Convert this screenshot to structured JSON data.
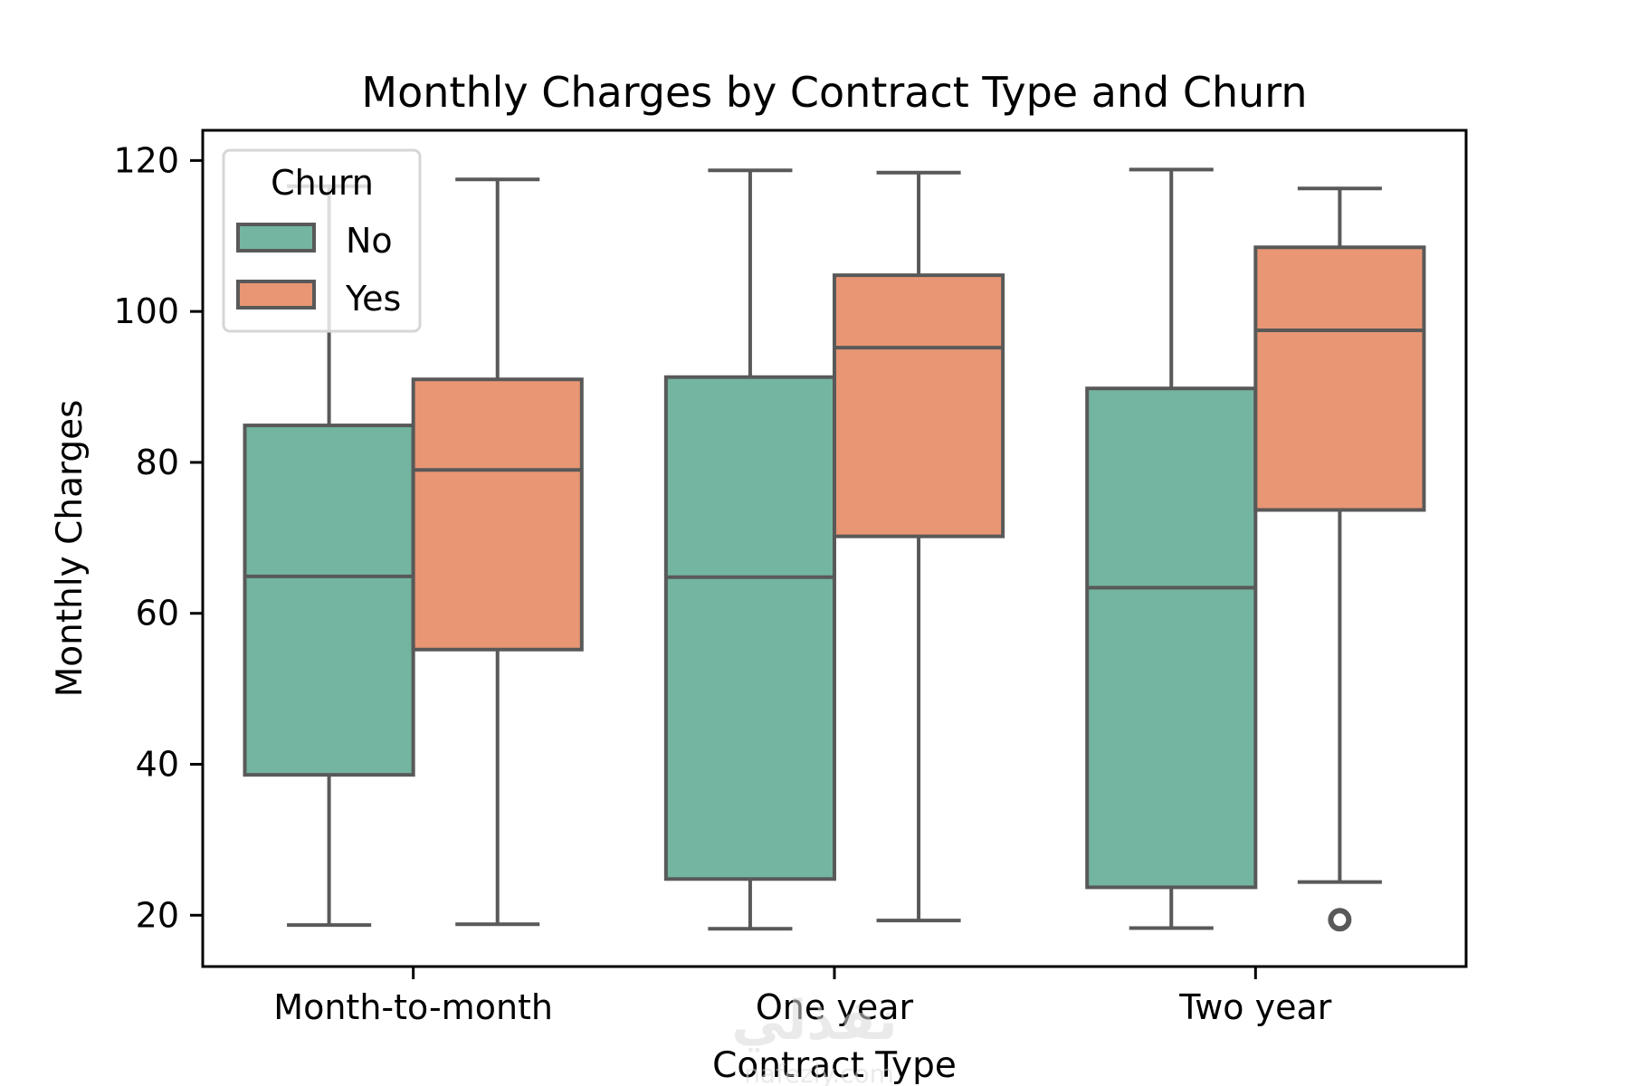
{
  "chart_data": {
    "type": "box",
    "title": "Monthly Charges by Contract Type and Churn",
    "xlabel": "Contract Type",
    "ylabel": "Monthly Charges",
    "categories": [
      "Month-to-month",
      "One year",
      "Two year"
    ],
    "ylim": [
      13.2,
      124
    ],
    "yticks": [
      20,
      40,
      60,
      80,
      100,
      120
    ],
    "grid": false,
    "legend": {
      "title": "Churn",
      "placement": "top-left",
      "entries": [
        "No",
        "Yes"
      ]
    },
    "series": [
      {
        "name": "No",
        "color": "#73b5a0",
        "boxes": [
          {
            "category": "Month-to-month",
            "whisker_low": 18.7,
            "q1": 38.6,
            "median": 64.9,
            "q3": 84.9,
            "whisker_high": 116.6,
            "outliers": []
          },
          {
            "category": "One year",
            "whisker_low": 18.2,
            "q1": 24.8,
            "median": 64.8,
            "q3": 91.3,
            "whisker_high": 118.7,
            "outliers": []
          },
          {
            "category": "Two year",
            "whisker_low": 18.3,
            "q1": 23.7,
            "median": 63.4,
            "q3": 89.8,
            "whisker_high": 118.8,
            "outliers": []
          }
        ]
      },
      {
        "name": "Yes",
        "color": "#e89673",
        "boxes": [
          {
            "category": "Month-to-month",
            "whisker_low": 18.8,
            "q1": 55.2,
            "median": 79.0,
            "q3": 91.0,
            "whisker_high": 117.5,
            "outliers": []
          },
          {
            "category": "One year",
            "whisker_low": 19.3,
            "q1": 70.2,
            "median": 95.2,
            "q3": 104.8,
            "whisker_high": 118.4,
            "outliers": []
          },
          {
            "category": "Two year",
            "whisker_low": 24.4,
            "q1": 73.7,
            "median": 97.5,
            "q3": 108.5,
            "whisker_high": 116.3,
            "outliers": [
              19.4
            ]
          }
        ]
      }
    ],
    "line_color": "#595959"
  },
  "watermark": {
    "text_ar": "نفذلي",
    "text_en": "nafezly.com"
  }
}
